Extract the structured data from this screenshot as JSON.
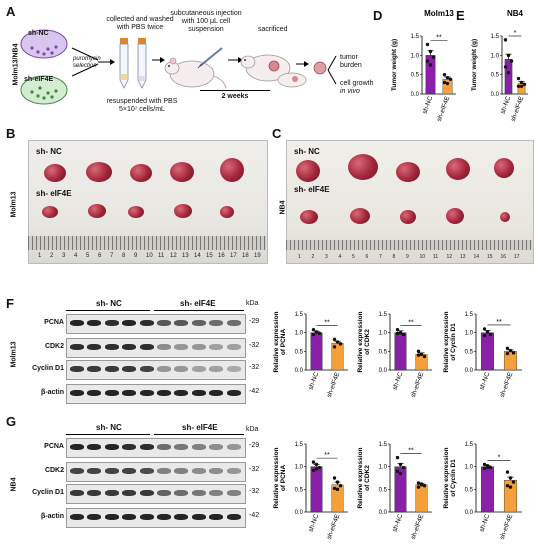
{
  "panels": {
    "A": "A",
    "B": "B",
    "C": "C",
    "D": "D",
    "E": "E",
    "F": "F",
    "G": "G"
  },
  "schematic": {
    "side_label": "Molm13/NB4",
    "dish1": "sh-NC",
    "dish2": "sh-eIF4E",
    "selection": "puromycin selection",
    "wash": "collected and washed with PBS twice",
    "resuspend": "resuspended with PBS",
    "cells": "5×10⁷ cells/mL",
    "inject": "subcutaneous injection with 100 μL cell suspension",
    "weeks": "2 weeks",
    "sacrificed": "sacrificed",
    "out1": "tumor burden",
    "out2": "cell growth",
    "out2b": "in vivo"
  },
  "photoB": {
    "side": "Molm13",
    "row1": "sh- NC",
    "row2": "sh- eIF4E"
  },
  "photoC": {
    "side": "NB4",
    "row1": "sh- NC",
    "row2": "sh- eIF4E"
  },
  "blotF": {
    "side": "Molm13",
    "g1": "sh- NC",
    "g2": "sh- eIF4E",
    "kda": "kDa",
    "rows": [
      {
        "label": "PCNA",
        "kda": "29"
      },
      {
        "label": "CDK2",
        "kda": "32"
      },
      {
        "label": "Cyclin D1",
        "kda": "32"
      },
      {
        "label": "β-actin",
        "kda": "42"
      }
    ]
  },
  "blotG": {
    "side": "NB4",
    "g1": "sh- NC",
    "g2": "sh- eIF4E",
    "kda": "kDa",
    "rows": [
      {
        "label": "PCNA",
        "kda": "29"
      },
      {
        "label": "CDK2",
        "kda": "32"
      },
      {
        "label": "Cyclin D1",
        "kda": "32"
      },
      {
        "label": "β-actin",
        "kda": "42"
      }
    ]
  },
  "colors": {
    "nc": "#8a1fa8",
    "eif": "#f5a03a"
  },
  "chart_data": [
    {
      "id": "D",
      "type": "bar",
      "title": "Molm13",
      "ylabel": "Tumor weight (g)",
      "categories": [
        "sh-NC",
        "sh-eIF4E"
      ],
      "values": [
        1.0,
        0.38
      ],
      "errors": [
        0.12,
        0.06
      ],
      "points": [
        [
          1.28,
          1.1,
          0.95,
          0.85,
          0.75
        ],
        [
          0.5,
          0.42,
          0.38,
          0.3,
          0.27
        ]
      ],
      "ylim": [
        0,
        1.5
      ],
      "yticks": [
        "0.0",
        "0.5",
        "1.0",
        "1.5"
      ],
      "sig": "**"
    },
    {
      "id": "E",
      "type": "bar",
      "title": "NB4",
      "ylabel": "Tumor weight (g)",
      "categories": [
        "sh-NC",
        "sh-eIF4E"
      ],
      "values": [
        0.9,
        0.27
      ],
      "errors": [
        0.13,
        0.05
      ],
      "points": [
        [
          1.4,
          1.0,
          0.85,
          0.7,
          0.55
        ],
        [
          0.4,
          0.3,
          0.25,
          0.2,
          0.2
        ]
      ],
      "ylim": [
        0,
        1.5
      ],
      "yticks": [
        "0.0",
        "0.5",
        "1.0",
        "1.5"
      ],
      "sig": "*"
    },
    {
      "id": "F1",
      "type": "bar",
      "ylabel": "Relative expression of PCNA",
      "categories": [
        "sh-NC",
        "sh-eIF4E"
      ],
      "values": [
        1.0,
        0.72
      ],
      "errors": [
        0.04,
        0.05
      ],
      "points": [
        [
          1.08,
          1.02,
          0.98,
          0.95
        ],
        [
          0.82,
          0.75,
          0.7,
          0.62
        ]
      ],
      "ylim": [
        0,
        1.5
      ],
      "yticks": [
        "0.0",
        "0.5",
        "1.0",
        "1.5"
      ],
      "sig": "**"
    },
    {
      "id": "F2",
      "type": "bar",
      "ylabel": "Relative expression of CDK2",
      "categories": [
        "sh-NC",
        "sh-eIF4E"
      ],
      "values": [
        1.0,
        0.42
      ],
      "errors": [
        0.05,
        0.04
      ],
      "points": [
        [
          1.08,
          1.0,
          0.95,
          0.98
        ],
        [
          0.5,
          0.42,
          0.36,
          0.4
        ]
      ],
      "ylim": [
        0,
        1.5
      ],
      "yticks": [
        "0.0",
        "0.5",
        "1.0",
        "1.5"
      ],
      "sig": "**"
    },
    {
      "id": "F3",
      "type": "bar",
      "ylabel": "Relative expression of Cyclin D1",
      "categories": [
        "sh-NC",
        "sh-eIF4E"
      ],
      "values": [
        1.0,
        0.5
      ],
      "errors": [
        0.06,
        0.04
      ],
      "points": [
        [
          1.1,
          1.02,
          0.95,
          0.92
        ],
        [
          0.58,
          0.52,
          0.46,
          0.44
        ]
      ],
      "ylim": [
        0,
        1.5
      ],
      "yticks": [
        "0.0",
        "0.5",
        "1.0",
        "1.5"
      ],
      "sig": "**"
    },
    {
      "id": "G1",
      "type": "bar",
      "ylabel": "Relative expression of PCNA",
      "categories": [
        "sh-NC",
        "sh-eIF4E"
      ],
      "values": [
        1.0,
        0.6
      ],
      "errors": [
        0.05,
        0.06
      ],
      "points": [
        [
          1.1,
          1.05,
          0.98,
          0.92,
          0.95
        ],
        [
          0.75,
          0.66,
          0.58,
          0.52,
          0.5
        ]
      ],
      "ylim": [
        0,
        1.5
      ],
      "yticks": [
        "0.0",
        "0.5",
        "1.0",
        "1.5"
      ],
      "sig": "**"
    },
    {
      "id": "G2",
      "type": "bar",
      "ylabel": "Relative expression of CDK2",
      "categories": [
        "sh-NC",
        "sh-eIF4E"
      ],
      "values": [
        1.0,
        0.6
      ],
      "errors": [
        0.07,
        0.03
      ],
      "points": [
        [
          1.2,
          1.05,
          0.98,
          0.9,
          0.85
        ],
        [
          0.64,
          0.6,
          0.58,
          0.55,
          0.62
        ]
      ],
      "ylim": [
        0,
        1.5
      ],
      "yticks": [
        "0.0",
        "0.5",
        "1.0",
        "1.5"
      ],
      "sig": "**"
    },
    {
      "id": "G3",
      "type": "bar",
      "ylabel": "Relative expression of Cyclin D1",
      "categories": [
        "sh-NC",
        "sh-eIF4E"
      ],
      "values": [
        1.0,
        0.7
      ],
      "errors": [
        0.03,
        0.07
      ],
      "points": [
        [
          1.05,
          1.02,
          0.98,
          0.96,
          0.99
        ],
        [
          0.88,
          0.75,
          0.66,
          0.58,
          0.55
        ]
      ],
      "ylim": [
        0,
        1.5
      ],
      "yticks": [
        "0.0",
        "0.5",
        "1.0",
        "1.5"
      ],
      "sig": "*"
    }
  ]
}
